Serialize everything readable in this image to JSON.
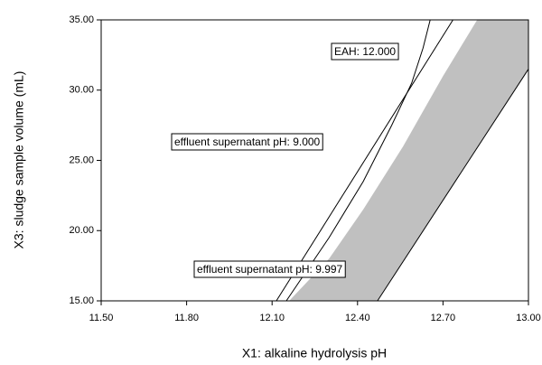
{
  "chart_data": {
    "type": "overlay",
    "x_label": "X1: alkaline hydrolysis pH",
    "y_label": "X3: sludge sample volume (mL)",
    "xlim": [
      11.5,
      13.0
    ],
    "ylim": [
      15,
      35
    ],
    "xticks": [
      {
        "value": 11.5,
        "label": "11.50"
      },
      {
        "value": 11.8,
        "label": "11.80"
      },
      {
        "value": 12.1,
        "label": "12.10"
      },
      {
        "value": 12.4,
        "label": "12.40"
      },
      {
        "value": 12.7,
        "label": "12.70"
      },
      {
        "value": 13.0,
        "label": "13.00"
      }
    ],
    "yticks": [
      {
        "value": 15,
        "label": "15.00"
      },
      {
        "value": 20,
        "label": "20.00"
      },
      {
        "value": 25,
        "label": "25.00"
      },
      {
        "value": 30,
        "label": "30.00"
      },
      {
        "value": 35,
        "label": "35.00"
      }
    ],
    "region": {
      "color": "#c0c0c0",
      "x": [
        12.16,
        12.47,
        13.0,
        13.0,
        12.82,
        12.7,
        12.56,
        12.42,
        12.3
      ],
      "y": [
        15,
        15,
        31.5,
        35,
        35,
        31,
        26,
        21.5,
        18
      ]
    },
    "series": [
      {
        "label": "effluent supernatant pH: 9.000",
        "color": "#000000",
        "x": [
          12.115,
          12.735
        ],
        "y": [
          15,
          35
        ]
      },
      {
        "label": "EAH: 12.000",
        "color": "#000000",
        "x": [
          12.15,
          12.3,
          12.42,
          12.52,
          12.59,
          12.63,
          12.655
        ],
        "y": [
          15,
          19.5,
          23.5,
          27.5,
          30.5,
          33,
          35
        ]
      },
      {
        "label": "effluent supernatant pH: 9.997",
        "color": "#000000",
        "x": [
          12.47,
          13.0
        ],
        "y": [
          15,
          31.5
        ]
      }
    ]
  }
}
